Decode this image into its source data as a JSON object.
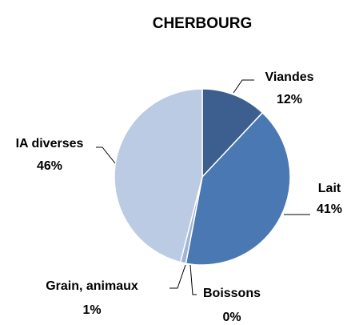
{
  "chart_data": {
    "type": "pie",
    "title": "CHERBOURG",
    "categories": [
      "Viandes",
      "Lait",
      "Boissons",
      "Grain, animaux",
      "IA diverses"
    ],
    "values": [
      12,
      41,
      0,
      1,
      46
    ],
    "value_labels": [
      "12%",
      "41%",
      "0%",
      "1%",
      "46%"
    ],
    "colors": [
      "#3d5f8f",
      "#4a78b2",
      "#6f91c2",
      "#9fb4d6",
      "#bccbe4"
    ]
  }
}
